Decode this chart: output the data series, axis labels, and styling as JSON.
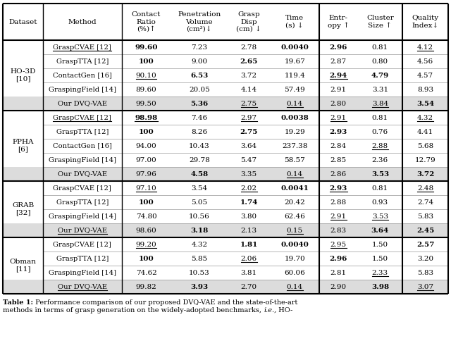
{
  "header_texts": [
    "Dataset",
    "Method",
    "Contact\nRatio\n(%)↑",
    "Penetration\nVolume\n(cm³)↓",
    "Grasp\nDisp\n(cm) ↓",
    "Time\n(s) ↓",
    "Entr-\nopy ↑",
    "Cluster\nSize ↑",
    "Quality\nIndex↓"
  ],
  "sections": [
    {
      "dataset": "HO-3D\n[10]",
      "rows": [
        [
          "GraspCVAE [12]",
          "99.60",
          "7.23",
          "2.78",
          "0.0040",
          "2.96",
          "0.81",
          "4.12"
        ],
        [
          "GraspTTA [12]",
          "100",
          "9.00",
          "2.65",
          "19.67",
          "2.87",
          "0.80",
          "4.56"
        ],
        [
          "ContactGen [16]",
          "90.10",
          "6.53",
          "3.72",
          "119.4",
          "2.94",
          "4.79",
          "4.57"
        ],
        [
          "GraspingField [14]",
          "89.60",
          "20.05",
          "4.14",
          "57.49",
          "2.91",
          "3.31",
          "8.93"
        ],
        [
          "Our DVQ-VAE",
          "99.50",
          "5.36",
          "2.75",
          "0.14",
          "2.80",
          "3.84",
          "3.54"
        ]
      ],
      "bold": [
        [
          false,
          true,
          false,
          false,
          true,
          true,
          false,
          false
        ],
        [
          false,
          true,
          false,
          true,
          false,
          false,
          false,
          false
        ],
        [
          false,
          false,
          true,
          false,
          false,
          true,
          true,
          false
        ],
        [
          false,
          false,
          false,
          false,
          false,
          false,
          false,
          false
        ],
        [
          false,
          false,
          true,
          false,
          false,
          false,
          false,
          true
        ]
      ],
      "underline": [
        [
          true,
          false,
          false,
          false,
          false,
          false,
          false,
          true
        ],
        [
          false,
          false,
          false,
          false,
          false,
          false,
          false,
          false
        ],
        [
          false,
          true,
          false,
          false,
          false,
          true,
          false,
          false
        ],
        [
          false,
          false,
          false,
          false,
          false,
          false,
          false,
          false
        ],
        [
          false,
          false,
          false,
          true,
          true,
          false,
          true,
          false
        ]
      ],
      "shaded": [
        false,
        false,
        false,
        false,
        true
      ]
    },
    {
      "dataset": "FPHA\n[6]",
      "rows": [
        [
          "GraspCVAE [12]",
          "98.98",
          "7.46",
          "2.97",
          "0.0038",
          "2.91",
          "0.81",
          "4.32"
        ],
        [
          "GraspTTA [12]",
          "100",
          "8.26",
          "2.75",
          "19.29",
          "2.93",
          "0.76",
          "4.41"
        ],
        [
          "ContactGen [16]",
          "94.00",
          "10.43",
          "3.64",
          "237.38",
          "2.84",
          "2.88",
          "5.68"
        ],
        [
          "GraspingField [14]",
          "97.00",
          "29.78",
          "5.47",
          "58.57",
          "2.85",
          "2.36",
          "12.79"
        ],
        [
          "Our DVQ-VAE",
          "97.96",
          "4.58",
          "3.35",
          "0.14",
          "2.86",
          "3.53",
          "3.72"
        ]
      ],
      "bold": [
        [
          false,
          true,
          false,
          false,
          true,
          false,
          false,
          false
        ],
        [
          false,
          true,
          false,
          true,
          false,
          true,
          false,
          false
        ],
        [
          false,
          false,
          false,
          false,
          false,
          false,
          false,
          false
        ],
        [
          false,
          false,
          false,
          false,
          false,
          false,
          false,
          false
        ],
        [
          false,
          false,
          true,
          false,
          false,
          false,
          true,
          true
        ]
      ],
      "underline": [
        [
          true,
          true,
          false,
          true,
          false,
          true,
          false,
          true
        ],
        [
          false,
          false,
          false,
          false,
          false,
          false,
          false,
          false
        ],
        [
          false,
          false,
          false,
          false,
          false,
          false,
          true,
          false
        ],
        [
          false,
          false,
          false,
          false,
          false,
          false,
          false,
          false
        ],
        [
          false,
          false,
          false,
          false,
          true,
          false,
          false,
          false
        ]
      ],
      "shaded": [
        false,
        false,
        false,
        false,
        true
      ]
    },
    {
      "dataset": "GRAB\n[32]",
      "rows": [
        [
          "GraspCVAE [12]",
          "97.10",
          "3.54",
          "2.02",
          "0.0041",
          "2.93",
          "0.81",
          "2.48"
        ],
        [
          "GraspTTA [12]",
          "100",
          "5.05",
          "1.74",
          "20.42",
          "2.88",
          "0.93",
          "2.74"
        ],
        [
          "GraspingField [14]",
          "74.80",
          "10.56",
          "3.80",
          "62.46",
          "2.91",
          "3.53",
          "5.83"
        ],
        [
          "Our DVQ-VAE",
          "98.60",
          "3.18",
          "2.13",
          "0.15",
          "2.83",
          "3.64",
          "2.45"
        ]
      ],
      "bold": [
        [
          false,
          false,
          false,
          false,
          true,
          true,
          false,
          false
        ],
        [
          false,
          true,
          false,
          true,
          false,
          false,
          false,
          false
        ],
        [
          false,
          false,
          false,
          false,
          false,
          false,
          false,
          false
        ],
        [
          false,
          false,
          true,
          false,
          false,
          false,
          true,
          true
        ]
      ],
      "underline": [
        [
          false,
          true,
          false,
          true,
          false,
          true,
          false,
          true
        ],
        [
          false,
          false,
          false,
          false,
          false,
          false,
          false,
          false
        ],
        [
          false,
          false,
          false,
          false,
          false,
          true,
          true,
          false
        ],
        [
          true,
          false,
          false,
          false,
          true,
          false,
          false,
          false
        ]
      ],
      "shaded": [
        false,
        false,
        false,
        true
      ]
    },
    {
      "dataset": "Obman\n[11]",
      "rows": [
        [
          "GraspCVAE [12]",
          "99.20",
          "4.32",
          "1.81",
          "0.0040",
          "2.95",
          "1.50",
          "2.57"
        ],
        [
          "GraspTTA [12]",
          "100",
          "5.85",
          "2.06",
          "19.70",
          "2.96",
          "1.50",
          "3.20"
        ],
        [
          "GraspingField [14]",
          "74.62",
          "10.53",
          "3.81",
          "60.06",
          "2.81",
          "2.33",
          "5.83"
        ],
        [
          "Our DVQ-VAE",
          "99.82",
          "3.93",
          "2.70",
          "0.14",
          "2.90",
          "3.98",
          "3.07"
        ]
      ],
      "bold": [
        [
          false,
          false,
          false,
          true,
          true,
          false,
          false,
          true
        ],
        [
          false,
          true,
          false,
          false,
          false,
          true,
          false,
          false
        ],
        [
          false,
          false,
          false,
          false,
          false,
          false,
          false,
          false
        ],
        [
          false,
          false,
          true,
          false,
          false,
          false,
          true,
          false
        ]
      ],
      "underline": [
        [
          false,
          true,
          false,
          false,
          false,
          true,
          false,
          false
        ],
        [
          false,
          false,
          false,
          true,
          false,
          false,
          false,
          false
        ],
        [
          false,
          false,
          false,
          false,
          false,
          false,
          true,
          false
        ],
        [
          true,
          false,
          false,
          false,
          true,
          false,
          false,
          true
        ]
      ],
      "shaded": [
        false,
        false,
        false,
        true
      ]
    }
  ],
  "caption_bold": "Table 1:",
  "caption_normal": " Performance comparison of our proposed DVQ-VAE and the state-of-the-art",
  "caption_line2": "methods in terms of grasp generation on the widely-adopted benchmarks, ",
  "caption_italic": "i.e.,",
  "caption_end": " HO-",
  "bg_color": "#ffffff",
  "shaded_color": "#dcdcdc",
  "fontsize_header": 7.5,
  "fontsize_data": 7.5,
  "fontsize_caption": 7.0
}
